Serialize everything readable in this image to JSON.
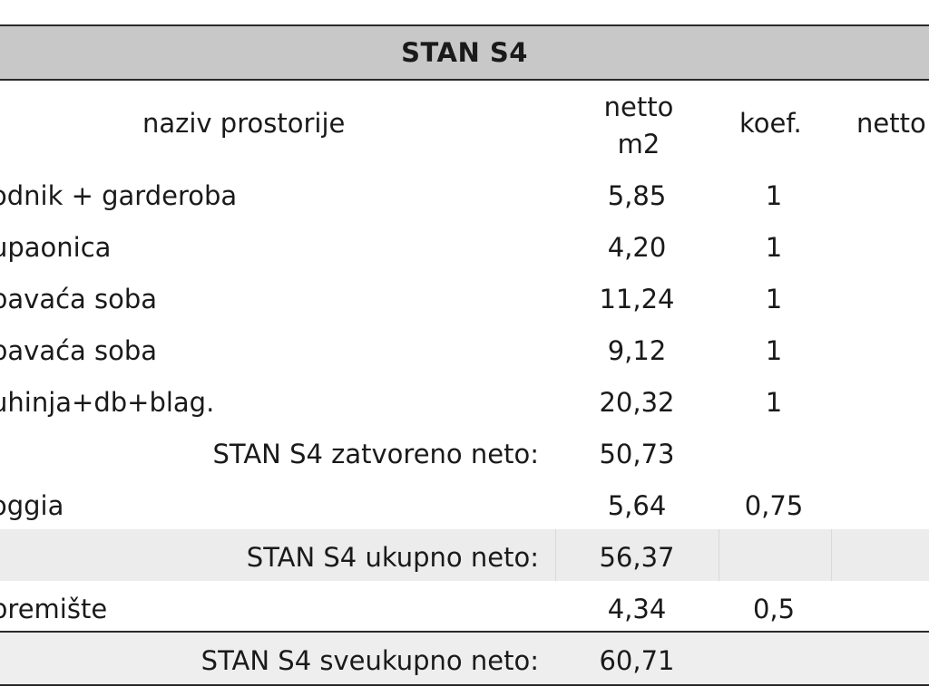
{
  "title": "STAN S4",
  "headers": {
    "name": "naziv prostorije",
    "area_line1": "netto",
    "area_line2": "m2",
    "koef": "koef.",
    "netto_right": "netto"
  },
  "rows": [
    {
      "name": "odnik + garderoba",
      "area": "5,85",
      "koef": "1"
    },
    {
      "name": "upaonica",
      "area": "4,20",
      "koef": "1"
    },
    {
      "name": "pavaća soba",
      "area": "11,24",
      "koef": "1"
    },
    {
      "name": "pavaća soba",
      "area": "9,12",
      "koef": "1"
    },
    {
      "name": "uhinja+db+blag.",
      "area": "20,32",
      "koef": "1"
    }
  ],
  "subtotal_closed": {
    "label": "STAN S4 zatvoreno neto:",
    "area": "50,73"
  },
  "loggia": {
    "name": "oggia",
    "area": "5,64",
    "koef": "0,75"
  },
  "total_net": {
    "label": "STAN S4 ukupno neto:",
    "area": "56,37"
  },
  "storage": {
    "name": "premište",
    "area": "4,34",
    "koef": "0,5"
  },
  "grand_total": {
    "label": "STAN S4 sveukupno neto:",
    "area": "60,71"
  }
}
